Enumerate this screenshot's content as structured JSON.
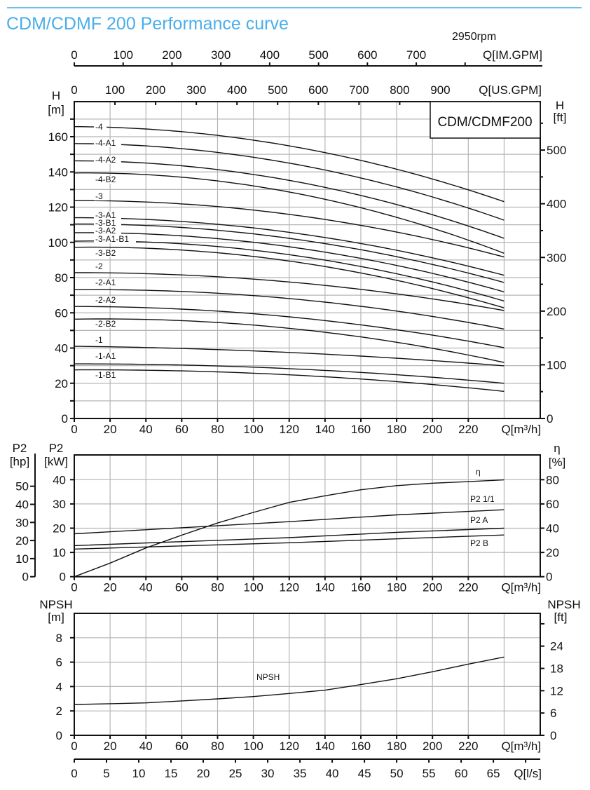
{
  "page": {
    "title": "CDM/CDMF 200 Performance curve",
    "speed": "2950rpm",
    "title_color": "#4aaee8",
    "rule_color": "#6cc0ee"
  },
  "chart_data": [
    {
      "type": "line",
      "model_label": "CDM/CDMF200",
      "xlabel": "Q[m³/h]",
      "xlim": [
        0,
        260
      ],
      "xticks": [
        "0",
        "20",
        "40",
        "60",
        "80",
        "100",
        "120",
        "140",
        "160",
        "180",
        "200",
        "220"
      ],
      "ylabel": "H",
      "yunit": "[m]",
      "ylim": [
        0,
        180
      ],
      "yticks": [
        "0",
        "20",
        "40",
        "60",
        "80",
        "100",
        "120",
        "140",
        "160"
      ],
      "ylabel_right": "H",
      "yunit_right": "[ft]",
      "yticks_right": [
        "0",
        "100",
        "200",
        "300",
        "400",
        "500"
      ],
      "top_axis_us": {
        "label": "Q[US.GPM]",
        "ticks": [
          "0",
          "100",
          "200",
          "300",
          "400",
          "500",
          "600",
          "700",
          "800",
          "900"
        ]
      },
      "top_axis_im": {
        "label": "Q[IM.GPM]",
        "ticks": [
          "0",
          "100",
          "200",
          "300",
          "400",
          "500",
          "600",
          "700"
        ]
      },
      "grid": true,
      "x": [
        0,
        120,
        240
      ],
      "series": [
        {
          "name": "-4",
          "values": [
            165.7,
            154.8,
            123.1
          ]
        },
        {
          "name": "-4-A1",
          "values": [
            156.1,
            145.0,
            112.6
          ]
        },
        {
          "name": "-4-A2",
          "values": [
            146.3,
            135.2,
            102.3
          ]
        },
        {
          "name": "-4-B2",
          "values": [
            139.4,
            128.6,
            93.8
          ]
        },
        {
          "name": "-3",
          "values": [
            123.7,
            115.9,
            91.7
          ]
        },
        {
          "name": "-3-A1",
          "values": [
            114.0,
            105.7,
            81.3
          ]
        },
        {
          "name": "-3-B1",
          "values": [
            110.4,
            102.3,
            77.2
          ]
        },
        {
          "name": "-3-A2",
          "values": [
            105.5,
            97.5,
            71.9
          ]
        },
        {
          "name": "-3-A1-B1",
          "values": [
            100.7,
            93.0,
            66.7
          ]
        },
        {
          "name": "-3-B2",
          "values": [
            97.2,
            89.4,
            62.8
          ]
        },
        {
          "name": "-2",
          "values": [
            82.8,
            77.5,
            61.3
          ]
        },
        {
          "name": "-2-A1",
          "values": [
            73.1,
            68.1,
            50.8
          ]
        },
        {
          "name": "-2-A2",
          "values": [
            63.6,
            57.7,
            40.2
          ]
        },
        {
          "name": "-2-B2",
          "values": [
            56.4,
            51.2,
            31.8
          ]
        },
        {
          "name": "-1",
          "values": [
            41.0,
            37.5,
            29.9
          ]
        },
        {
          "name": "-1-A1",
          "values": [
            31.0,
            28.3,
            20.0
          ]
        },
        {
          "name": "-1-B1",
          "values": [
            27.6,
            24.8,
            15.4
          ]
        }
      ]
    },
    {
      "type": "line",
      "xlabel": "Q[m³/h]",
      "xlim": [
        0,
        260
      ],
      "xticks": [
        "0",
        "20",
        "40",
        "60",
        "80",
        "100",
        "120",
        "140",
        "160",
        "180",
        "200",
        "220"
      ],
      "ylabel": "P2",
      "yunit": "[kW]",
      "ylim": [
        0,
        50
      ],
      "yticks": [
        "0",
        "10",
        "20",
        "30",
        "40"
      ],
      "ylabel_hp": "P2",
      "yunit_hp": "[hp]",
      "yticks_hp": [
        "0",
        "10",
        "20",
        "30",
        "40",
        "50"
      ],
      "ylabel_right": "η",
      "yunit_right": "[%]",
      "yticks_right": [
        "0",
        "20",
        "40",
        "60",
        "80"
      ],
      "grid": true,
      "series": [
        {
          "name": "η",
          "axis": "right",
          "x": [
            0,
            20,
            40,
            60,
            80,
            100,
            120,
            140,
            160,
            180,
            200,
            220,
            240
          ],
          "values": [
            0,
            11.2,
            23.7,
            34.3,
            44.3,
            53.0,
            61.3,
            66.7,
            71.7,
            75.1,
            77.1,
            78.4,
            79.8
          ]
        },
        {
          "name": "P2 1/1",
          "axis": "left",
          "x": [
            0,
            120,
            180,
            240
          ],
          "values": [
            17.7,
            22.7,
            25.5,
            27.6
          ]
        },
        {
          "name": "P2 A",
          "axis": "left",
          "x": [
            0,
            120,
            180,
            240
          ],
          "values": [
            12.8,
            16.1,
            18.3,
            20.0
          ]
        },
        {
          "name": "P2 B",
          "axis": "left",
          "x": [
            0,
            120,
            180,
            240
          ],
          "values": [
            11.4,
            14.0,
            15.6,
            17.2
          ]
        }
      ]
    },
    {
      "type": "line",
      "xlabel": "Q[m³/h]",
      "xlim": [
        0,
        260
      ],
      "xticks": [
        "0",
        "20",
        "40",
        "60",
        "80",
        "100",
        "120",
        "140",
        "160",
        "180",
        "200",
        "220"
      ],
      "ylabel": "NPSH",
      "yunit": "[m]",
      "ylim": [
        0,
        10
      ],
      "yticks": [
        "0",
        "2",
        "4",
        "6",
        "8"
      ],
      "ylabel_right": "NPSH",
      "yunit_right": "[ft]",
      "yticks_right": [
        "0",
        "6",
        "12",
        "18",
        "24"
      ],
      "bottom_axis_ls": {
        "label": "Q[l/s]",
        "ticks": [
          "0",
          "5",
          "10",
          "15",
          "20",
          "25",
          "30",
          "35",
          "40",
          "45",
          "50",
          "55",
          "60",
          "65"
        ]
      },
      "grid": true,
      "series": [
        {
          "name": "NPSH",
          "x": [
            0,
            20,
            40,
            60,
            80,
            100,
            120,
            140,
            160,
            180,
            200,
            220,
            240
          ],
          "values": [
            2.53,
            2.59,
            2.66,
            2.82,
            2.99,
            3.18,
            3.43,
            3.7,
            4.16,
            4.64,
            5.21,
            5.84,
            6.42
          ]
        }
      ]
    }
  ]
}
